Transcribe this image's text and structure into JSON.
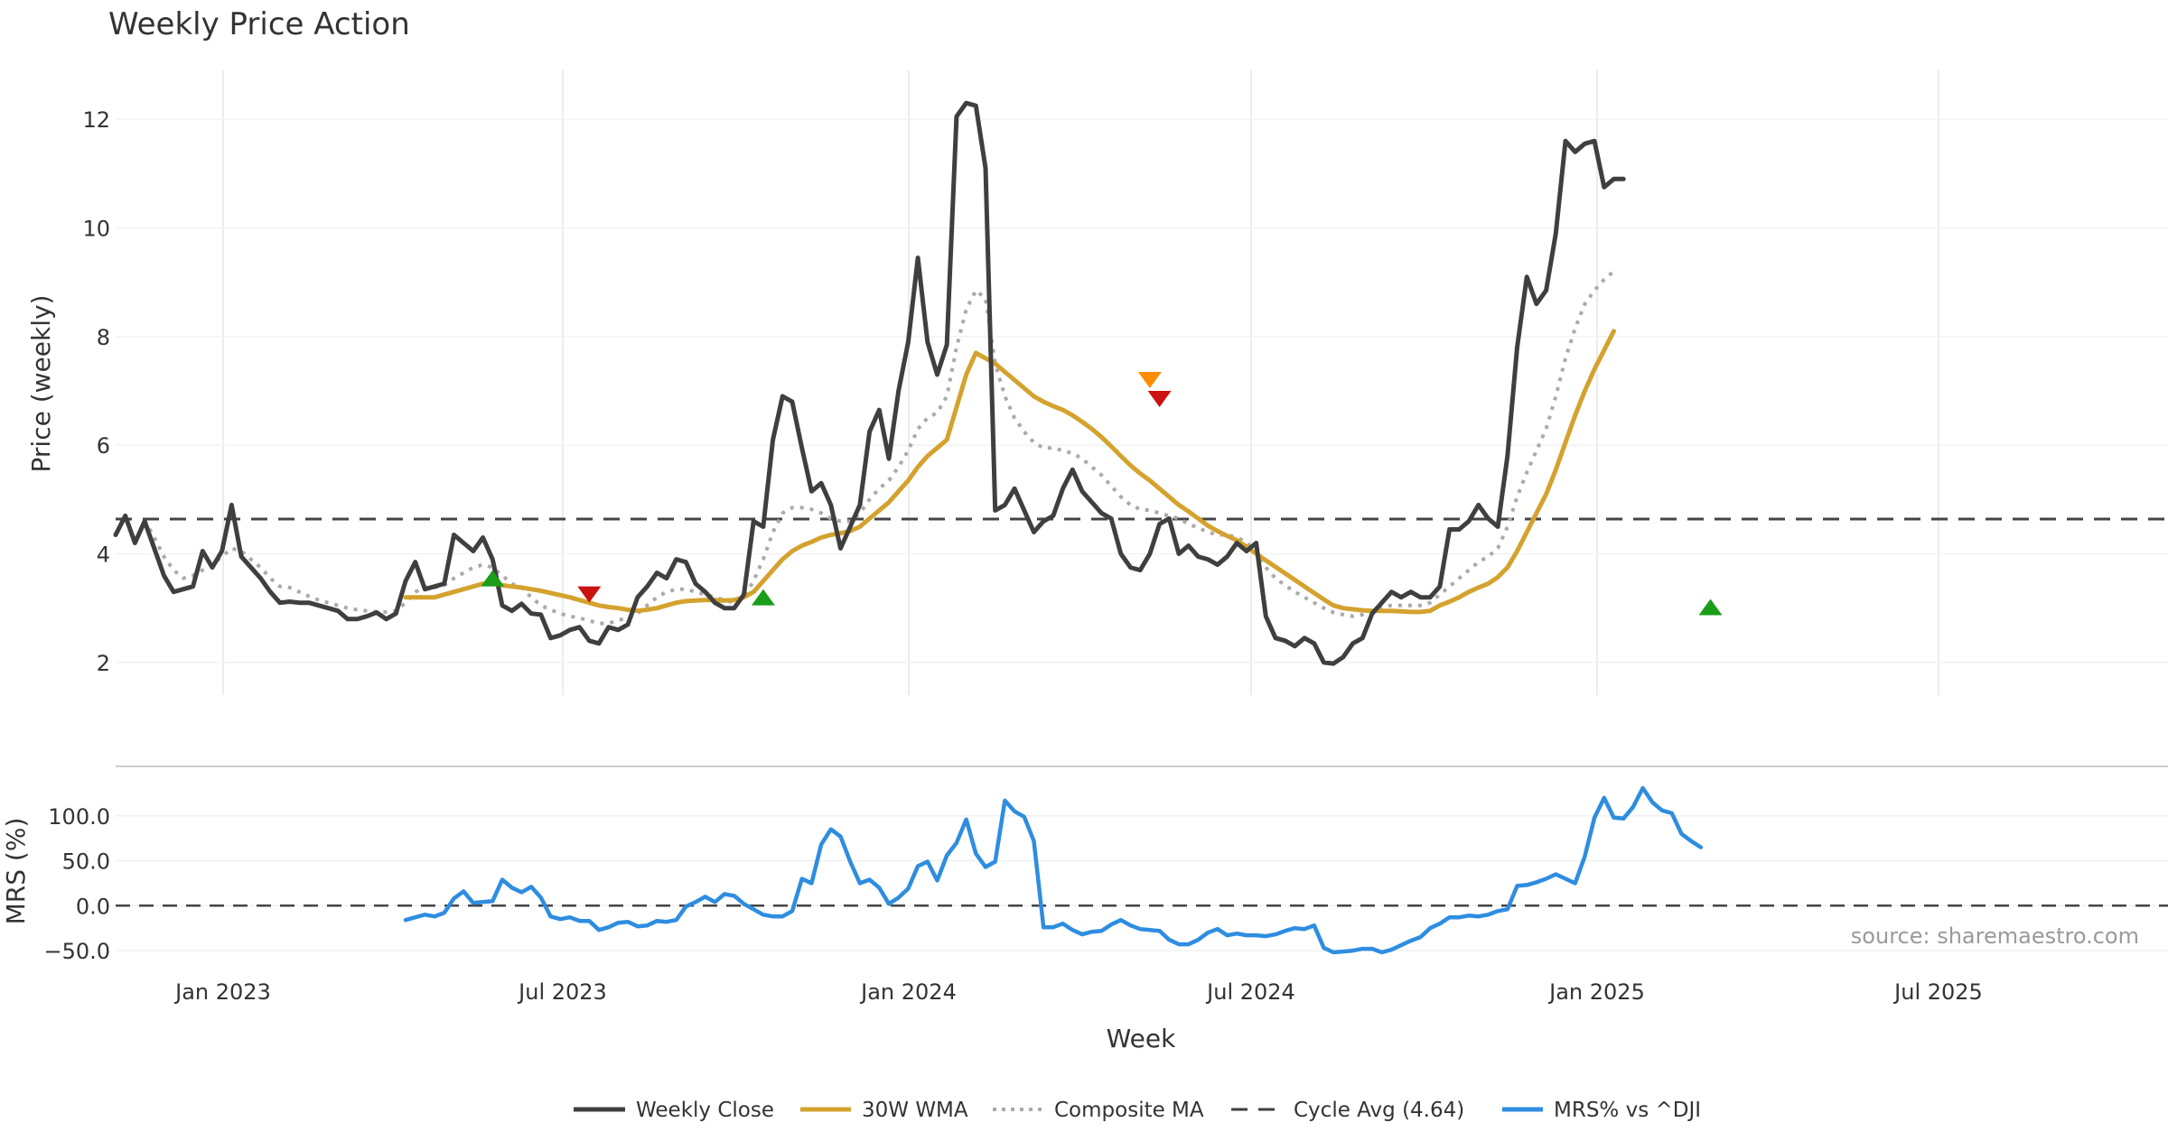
{
  "chart_data": {
    "type": "line",
    "title": "Weekly Price Action",
    "xlabel": "Week",
    "source": "source: sharemaestro.com",
    "x_ticks": [
      "Jan 2023",
      "Jul 2023",
      "Jan 2024",
      "Jul 2024",
      "Jan 2025",
      "Jul 2025"
    ],
    "price_panel": {
      "ylabel": "Price (weekly)",
      "ylim": [
        1.4,
        12.9
      ],
      "y_ticks": [
        "2",
        "4",
        "6",
        "8",
        "10",
        "12"
      ],
      "cycle_avg": 4.64,
      "series": [
        {
          "name": "Weekly Close",
          "color": "#3f3f3f",
          "values": [
            4.35,
            4.7,
            4.2,
            4.6,
            4.1,
            3.6,
            3.3,
            3.35,
            3.4,
            4.05,
            3.75,
            4.05,
            4.9,
            3.95,
            3.75,
            3.55,
            3.3,
            3.1,
            3.12,
            3.1,
            3.1,
            3.05,
            3.0,
            2.95,
            2.8,
            2.8,
            2.85,
            2.92,
            2.8,
            2.9,
            3.5,
            3.85,
            3.35,
            3.4,
            3.45,
            4.35,
            4.2,
            4.05,
            4.3,
            3.9,
            3.05,
            2.95,
            3.08,
            2.9,
            2.88,
            2.45,
            2.5,
            2.6,
            2.65,
            2.4,
            2.35,
            2.65,
            2.6,
            2.7,
            3.2,
            3.4,
            3.65,
            3.55,
            3.9,
            3.85,
            3.45,
            3.3,
            3.1,
            3.0,
            3.0,
            3.25,
            4.6,
            4.5,
            6.1,
            6.9,
            6.8,
            5.95,
            5.15,
            5.3,
            4.9,
            4.1,
            4.5,
            4.9,
            6.25,
            6.65,
            5.75,
            7.0,
            7.9,
            9.45,
            7.9,
            7.3,
            7.85,
            12.05,
            12.3,
            12.25,
            11.1,
            4.8,
            4.9,
            5.2,
            4.8,
            4.4,
            4.6,
            4.7,
            5.2,
            5.55,
            5.15,
            4.95,
            4.75,
            4.65,
            4.0,
            3.75,
            3.7,
            4.0,
            4.55,
            4.65,
            4.0,
            4.15,
            3.95,
            3.9,
            3.8,
            3.95,
            4.2,
            4.05,
            4.2,
            2.85,
            2.45,
            2.4,
            2.3,
            2.45,
            2.35,
            2.0,
            1.98,
            2.1,
            2.35,
            2.45,
            2.9,
            3.1,
            3.3,
            3.2,
            3.3,
            3.2,
            3.2,
            3.4,
            4.45,
            4.45,
            4.6,
            4.9,
            4.65,
            4.5,
            5.8,
            7.8,
            9.1,
            8.6,
            8.85,
            9.9,
            11.6,
            11.4,
            11.55,
            11.6,
            10.75,
            10.9,
            10.9
          ]
        },
        {
          "name": "30W WMA",
          "color": "#d4a22e",
          "values": [
            null,
            null,
            null,
            null,
            null,
            null,
            null,
            null,
            null,
            null,
            null,
            null,
            null,
            null,
            null,
            null,
            null,
            null,
            null,
            null,
            null,
            null,
            null,
            null,
            null,
            null,
            null,
            null,
            null,
            null,
            3.2,
            3.2,
            3.2,
            3.2,
            3.25,
            3.3,
            3.35,
            3.4,
            3.45,
            3.45,
            3.42,
            3.4,
            3.38,
            3.35,
            3.32,
            3.28,
            3.24,
            3.2,
            3.15,
            3.1,
            3.05,
            3.02,
            3.0,
            2.97,
            2.95,
            2.97,
            3.0,
            3.05,
            3.1,
            3.13,
            3.14,
            3.15,
            3.15,
            3.14,
            3.15,
            3.2,
            3.3,
            3.5,
            3.7,
            3.9,
            4.05,
            4.15,
            4.22,
            4.3,
            4.35,
            4.38,
            4.42,
            4.5,
            4.65,
            4.8,
            4.95,
            5.15,
            5.35,
            5.6,
            5.8,
            5.95,
            6.1,
            6.7,
            7.3,
            7.7,
            7.6,
            7.5,
            7.35,
            7.2,
            7.05,
            6.9,
            6.8,
            6.72,
            6.65,
            6.55,
            6.43,
            6.3,
            6.15,
            5.98,
            5.8,
            5.63,
            5.48,
            5.35,
            5.2,
            5.05,
            4.9,
            4.78,
            4.65,
            4.52,
            4.42,
            4.33,
            4.25,
            4.13,
            4.0,
            3.88,
            3.76,
            3.64,
            3.52,
            3.4,
            3.28,
            3.16,
            3.05,
            3.0,
            2.98,
            2.96,
            2.95,
            2.95,
            2.95,
            2.94,
            2.93,
            2.93,
            2.95,
            3.05,
            3.12,
            3.2,
            3.3,
            3.38,
            3.45,
            3.57,
            3.75,
            4.05,
            4.4,
            4.75,
            5.1,
            5.55,
            6.05,
            6.55,
            7.0,
            7.4,
            7.75,
            8.1
          ]
        },
        {
          "name": "Composite MA",
          "color": "#aaaaaa",
          "dash": "dotted",
          "values": [
            null,
            null,
            null,
            4.62,
            4.3,
            3.95,
            3.7,
            3.55,
            3.6,
            3.7,
            3.8,
            3.95,
            4.1,
            4.05,
            3.9,
            3.75,
            3.55,
            3.4,
            3.38,
            3.3,
            3.22,
            3.15,
            3.1,
            3.05,
            3.0,
            2.97,
            2.95,
            2.93,
            2.93,
            2.95,
            3.1,
            3.3,
            3.38,
            3.38,
            3.42,
            3.55,
            3.65,
            3.75,
            3.8,
            3.75,
            3.6,
            3.45,
            3.38,
            3.2,
            3.05,
            2.97,
            2.9,
            2.85,
            2.82,
            2.77,
            2.72,
            2.72,
            2.78,
            2.82,
            2.9,
            3.05,
            3.2,
            3.3,
            3.35,
            3.35,
            3.3,
            3.25,
            3.2,
            3.15,
            3.1,
            3.2,
            3.5,
            3.9,
            4.4,
            4.75,
            4.85,
            4.85,
            4.82,
            4.75,
            4.65,
            4.6,
            4.6,
            4.75,
            5.0,
            5.2,
            5.35,
            5.6,
            5.9,
            6.3,
            6.5,
            6.6,
            6.9,
            7.8,
            8.5,
            8.85,
            8.7,
            7.5,
            6.9,
            6.5,
            6.25,
            6.05,
            5.95,
            5.95,
            5.9,
            5.85,
            5.75,
            5.6,
            5.45,
            5.25,
            5.05,
            4.9,
            4.82,
            4.8,
            4.75,
            4.7,
            4.65,
            4.55,
            4.48,
            4.4,
            4.35,
            4.35,
            4.3,
            4.22,
            4.0,
            3.75,
            3.55,
            3.42,
            3.3,
            3.2,
            3.1,
            3.0,
            2.92,
            2.88,
            2.85,
            2.88,
            2.95,
            3.02,
            3.05,
            3.05,
            3.05,
            3.05,
            3.1,
            3.25,
            3.4,
            3.55,
            3.7,
            3.85,
            3.95,
            4.1,
            4.5,
            5.05,
            5.5,
            5.9,
            6.3,
            6.9,
            7.6,
            8.15,
            8.6,
            8.85,
            9.05,
            9.2
          ]
        }
      ],
      "signals": [
        {
          "week": 39,
          "value": 3.55,
          "shape": "up",
          "color": "#1a9e1a"
        },
        {
          "week": 49,
          "value": 3.25,
          "shape": "down",
          "color": "#cc1111"
        },
        {
          "week": 67,
          "value": 3.2,
          "shape": "up",
          "color": "#1a9e1a"
        },
        {
          "week": 107,
          "value": 7.2,
          "shape": "down",
          "color": "#ff8c00"
        },
        {
          "week": 108,
          "value": 6.85,
          "shape": "down",
          "color": "#cc1111"
        },
        {
          "week": 165,
          "value": 3.02,
          "shape": "up",
          "color": "#1a9e1a"
        }
      ]
    },
    "mrs_panel": {
      "ylabel": "MRS (%)",
      "ylim": [
        -62,
        140
      ],
      "y_ticks": [
        "100.0",
        "50.0",
        "0.0",
        "−50.0"
      ],
      "zero_line": 0,
      "series": [
        {
          "name": "MRS% vs ^DJI",
          "color": "#2e8de0",
          "values": [
            null,
            null,
            null,
            null,
            null,
            null,
            null,
            null,
            null,
            null,
            null,
            null,
            null,
            null,
            null,
            null,
            null,
            null,
            null,
            null,
            null,
            null,
            null,
            null,
            null,
            null,
            null,
            null,
            null,
            null,
            -16,
            -13,
            -10,
            -12,
            -8,
            8,
            16,
            3,
            4,
            5,
            29,
            20,
            15,
            21,
            9,
            -12,
            -15,
            -13,
            -17,
            -17,
            -27,
            -24,
            -19,
            -18,
            -23,
            -22,
            -17,
            -18,
            -16,
            -1,
            4,
            10,
            4,
            13,
            11,
            2,
            -4,
            -10,
            -12,
            -12,
            -6,
            30,
            25,
            68,
            85,
            77,
            49,
            25,
            29,
            20,
            2,
            9,
            19,
            44,
            49,
            28,
            56,
            70,
            96,
            58,
            43,
            49,
            117,
            105,
            99,
            72,
            -24,
            -24,
            -20,
            -27,
            -32,
            -29,
            -28,
            -21,
            -16,
            -22,
            -26,
            -27,
            -28,
            -38,
            -43,
            -43,
            -38,
            -30,
            -26,
            -33,
            -31,
            -33,
            -33,
            -34,
            -32,
            -28,
            -25,
            -26,
            -22,
            -47,
            -52,
            -51,
            -50,
            -48,
            -48,
            -52,
            -49,
            -44,
            -39,
            -35,
            -25,
            -20,
            -13,
            -13,
            -11,
            -12,
            -10,
            -6,
            -4,
            22,
            23,
            26,
            30,
            35,
            30,
            25,
            55,
            98,
            120,
            98,
            97,
            110,
            131,
            115,
            106,
            103,
            80,
            72,
            65
          ]
        }
      ]
    },
    "legend": [
      "Weekly Close",
      "30W WMA",
      "Composite MA",
      "Cycle Avg (4.64)",
      "MRS% vs ^DJI"
    ]
  }
}
